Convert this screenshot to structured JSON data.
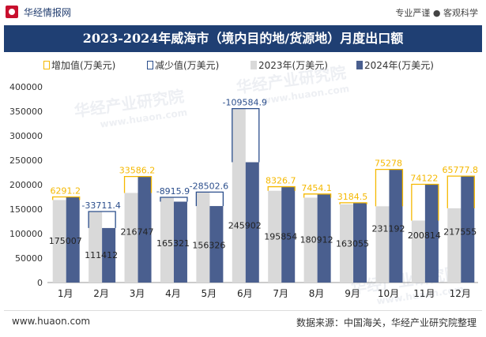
{
  "header": {
    "brand": "华经情报网",
    "tagline": "专业严谨 ● 客观科学",
    "title": "2023-2024年威海市（境内目的地/货源地）月度出口额"
  },
  "legend": {
    "increase": "增加值(万美元)",
    "decrease": "减少值(万美元)",
    "y2023": "2023年(万美元)",
    "y2024": "2024年(万美元)"
  },
  "footer": {
    "website": "www.huaon.com",
    "source": "数据来源：中国海关，华经产业研究院整理"
  },
  "colors": {
    "title_bg": "#1f3f73",
    "bar_2023": "#d9d9d9",
    "bar_2024": "#4a5f8f",
    "increase": "#f5b800",
    "decrease": "#2b4e8c"
  },
  "chart_data": {
    "type": "bar",
    "categories": [
      "1月",
      "2月",
      "3月",
      "4月",
      "5月",
      "6月",
      "7月",
      "8月",
      "9月",
      "10月",
      "11月",
      "12月"
    ],
    "series": [
      {
        "name": "2023年(万美元)",
        "values": [
          168716,
          145123,
          183161,
          174237,
          184829,
          355487,
          187527,
          173458,
          159870,
          155914,
          126692,
          151777
        ]
      },
      {
        "name": "2024年(万美元)",
        "values": [
          175007,
          111412,
          216747,
          165321,
          156326,
          245902,
          195854,
          180912,
          163055,
          231192,
          200814,
          217555
        ]
      }
    ],
    "change_labels": [
      "6291.2",
      "-33711.4",
      "33586.2",
      "-8915.9",
      "-28502.6",
      "-109584.9",
      "8326.7",
      "7454.1",
      "3184.5",
      "75278",
      "74122",
      "65777.8"
    ],
    "value_labels_2024": [
      "175007",
      "111412",
      "216747",
      "165321",
      "156326",
      "245902",
      "195854",
      "180912",
      "163055",
      "231192",
      "200814",
      "217555"
    ],
    "ylim": [
      0,
      400000
    ],
    "yticks": [
      "0",
      "50000",
      "100000",
      "150000",
      "200000",
      "250000",
      "300000",
      "350000",
      "400000"
    ],
    "watermarks": [
      "华经产业研究院",
      "www.huaon.com"
    ],
    "grid": false,
    "legend_position": "top"
  }
}
